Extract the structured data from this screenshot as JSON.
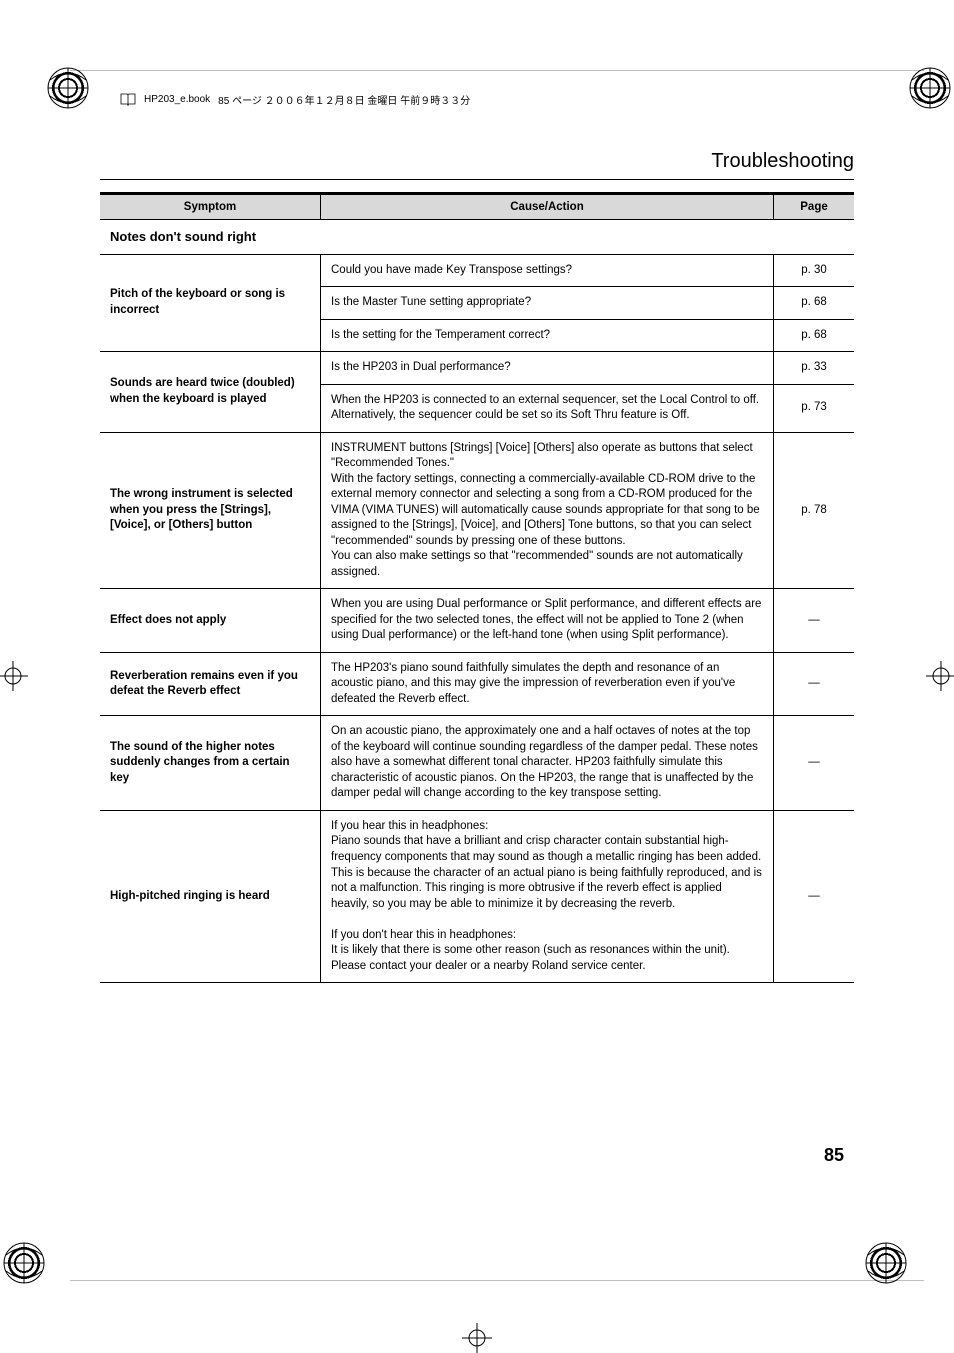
{
  "header": {
    "filename": "HP203_e.book",
    "page_info": "85 ページ ２００６年１２月８日 金曜日 午前９時３３分"
  },
  "section_title": "Troubleshooting",
  "table": {
    "headers": {
      "symptom": "Symptom",
      "cause": "Cause/Action",
      "page": "Page"
    },
    "section_heading": "Notes don't sound right",
    "rows": [
      {
        "symptom": "Pitch of the keyboard or song is incorrect",
        "symptom_rowspan": 3,
        "cause": "Could you have made Key Transpose settings?",
        "page": "p. 30"
      },
      {
        "cause": "Is the Master Tune setting appropriate?",
        "page": "p. 68"
      },
      {
        "cause": "Is the setting for the Temperament correct?",
        "page": "p. 68"
      },
      {
        "symptom": "Sounds are heard twice (doubled) when the keyboard is played",
        "symptom_rowspan": 2,
        "cause": "Is the HP203 in Dual performance?",
        "page": "p. 33"
      },
      {
        "cause": "When the HP203 is connected to an external sequencer, set the Local Control to off. Alternatively, the sequencer could be set so its Soft Thru feature is Off.",
        "page": "p. 73"
      },
      {
        "symptom": "The wrong instrument is selected when you press the [Strings], [Voice], or [Others] button",
        "cause": "INSTRUMENT buttons [Strings] [Voice] [Others] also operate as buttons that select \"Recommended Tones.\"\nWith the factory settings, connecting a commercially-available CD-ROM drive to the external memory connector and selecting a song from a CD-ROM produced for the VIMA (VIMA TUNES) will automatically cause sounds appropriate for that song to be assigned to the [Strings], [Voice], and [Others] Tone buttons, so that you can select \"recommended\" sounds by pressing one of these buttons.\nYou can also make settings so that \"recommended\" sounds are not automatically assigned.",
        "page": "p. 78"
      },
      {
        "symptom": "Effect does not apply",
        "cause": "When you are using Dual performance or Split performance, and different effects are specified for the two selected tones, the effect will not be applied to Tone 2 (when using Dual performance) or the left-hand tone (when using Split performance).",
        "page": "—"
      },
      {
        "symptom": "Reverberation remains even if you defeat the Reverb effect",
        "cause": "The HP203's piano sound faithfully simulates the depth and resonance of an acoustic piano, and this may give the impression of reverberation even if you've defeated the Reverb effect.",
        "page": "—"
      },
      {
        "symptom": "The sound of the higher notes suddenly changes from a certain key",
        "cause": "On an acoustic piano, the approximately one and a half octaves of notes at the top of the keyboard will continue sounding regardless of the damper pedal. These notes also have a somewhat different tonal character. HP203 faithfully simulate this characteristic of acoustic pianos. On the HP203, the range that is unaffected by the damper pedal will change according to the key transpose setting.",
        "page": "—"
      },
      {
        "symptom": "High-pitched ringing is heard",
        "cause": "If you hear this in headphones:\nPiano sounds that have a brilliant and crisp character contain substantial high-frequency components that may sound as though a metallic ringing has been added. This is because the character of an actual piano is being faithfully reproduced, and is not a malfunction. This ringing is more obtrusive if the reverb effect is applied heavily, so you may be able to minimize it by decreasing the reverb.\n\nIf you don't hear this in headphones:\nIt is likely that there is some other reason (such as resonances within the unit). Please contact your dealer or a nearby Roland service center.",
        "page": "—",
        "last": true
      }
    ]
  },
  "page_number": "85"
}
